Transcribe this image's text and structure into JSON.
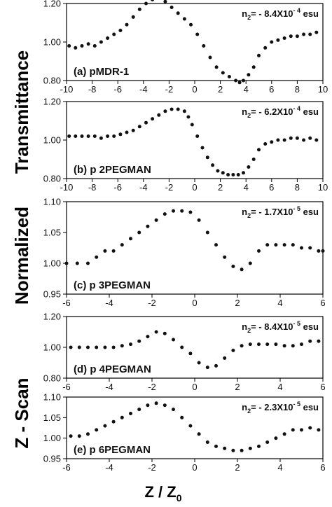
{
  "figure": {
    "ylabel_parts": [
      "Z - Scan",
      "Normalized",
      "Transmittance"
    ],
    "xlabel_main": "Z / Z",
    "xlabel_sub": "0"
  },
  "chart_data": [
    {
      "type": "scatter",
      "panel_label": "(a) pMDR-1",
      "annotation": {
        "prefix": "n",
        "sub": "2",
        "main": "= - 8.4X10",
        "sup": "- 4",
        "unit": " esu"
      },
      "xlim": [
        -10,
        10
      ],
      "ylim": [
        0.8,
        1.2
      ],
      "xticks": [
        "-10",
        "-8",
        "-6",
        "-4",
        "-2",
        "0",
        "2",
        "4",
        "6",
        "8",
        "10"
      ],
      "yticks": [
        "0.80",
        "1.00",
        "1.20"
      ],
      "x": [
        -9.8,
        -9.3,
        -8.8,
        -8.3,
        -7.8,
        -7.3,
        -6.8,
        -6.3,
        -5.8,
        -5.3,
        -4.8,
        -4.3,
        -3.8,
        -3.3,
        -2.8,
        -2.3,
        -1.8,
        -1.3,
        -0.8,
        -0.3,
        0.2,
        0.7,
        1.2,
        1.7,
        2.2,
        2.7,
        3.2,
        3.5,
        3.8,
        4.2,
        4.6,
        5.0,
        5.5,
        6.0,
        6.5,
        7.0,
        7.5,
        8.0,
        8.5,
        9.0,
        9.5
      ],
      "y": [
        0.98,
        0.97,
        0.98,
        0.99,
        0.98,
        1.0,
        1.02,
        1.04,
        1.06,
        1.09,
        1.13,
        1.17,
        1.2,
        1.22,
        1.23,
        1.21,
        1.18,
        1.15,
        1.12,
        1.09,
        1.04,
        0.98,
        0.92,
        0.87,
        0.84,
        0.82,
        0.8,
        0.79,
        0.8,
        0.83,
        0.87,
        0.93,
        0.97,
        1.0,
        1.01,
        1.02,
        1.03,
        1.03,
        1.04,
        1.04,
        1.05
      ]
    },
    {
      "type": "scatter",
      "panel_label": "(b) p 2PEGMAN",
      "annotation": {
        "prefix": "n",
        "sub": "2",
        "main": "= - 6.2X10",
        "sup": "- 4",
        "unit": " esu"
      },
      "xlim": [
        -10,
        10
      ],
      "ylim": [
        0.8,
        1.2
      ],
      "xticks": [
        "-10",
        "-8",
        "-6",
        "-4",
        "-2",
        "0",
        "2",
        "4",
        "6",
        "8",
        "10"
      ],
      "yticks": [
        "0.80",
        "1.00",
        "1.20"
      ],
      "x": [
        -9.8,
        -9.3,
        -8.8,
        -8.3,
        -7.8,
        -7.3,
        -6.8,
        -6.3,
        -5.8,
        -5.3,
        -4.8,
        -4.3,
        -3.8,
        -3.3,
        -2.8,
        -2.3,
        -1.8,
        -1.3,
        -0.8,
        -0.5,
        -0.2,
        0.2,
        0.6,
        1.0,
        1.4,
        1.8,
        2.2,
        2.6,
        3.0,
        3.4,
        3.8,
        4.2,
        4.6,
        5.0,
        5.5,
        6.0,
        6.5,
        7.0,
        7.5,
        8.0,
        8.5,
        9.0,
        9.5
      ],
      "y": [
        1.02,
        1.02,
        1.02,
        1.02,
        1.02,
        1.01,
        1.02,
        1.02,
        1.03,
        1.04,
        1.05,
        1.07,
        1.09,
        1.11,
        1.13,
        1.15,
        1.16,
        1.16,
        1.15,
        1.12,
        1.08,
        1.02,
        0.96,
        0.91,
        0.87,
        0.84,
        0.83,
        0.82,
        0.82,
        0.82,
        0.83,
        0.86,
        0.9,
        0.95,
        0.98,
        0.99,
        1.0,
        1.0,
        1.01,
        1.01,
        1.0,
        1.01,
        1.0
      ]
    },
    {
      "type": "scatter",
      "panel_label": "(c) p 3PEGMAN",
      "annotation": {
        "prefix": "n",
        "sub": "2",
        "main": "= - 1.7X10",
        "sup": "- 5",
        "unit": " esu"
      },
      "xlim": [
        -6,
        6
      ],
      "ylim": [
        0.95,
        1.1
      ],
      "xticks": [
        "-6",
        "-4",
        "-2",
        "0",
        "2",
        "4",
        "6"
      ],
      "yticks": [
        "0.95",
        "1.00",
        "1.05",
        "1.10"
      ],
      "x": [
        -6.0,
        -5.5,
        -5.0,
        -4.6,
        -4.2,
        -3.8,
        -3.4,
        -3.0,
        -2.6,
        -2.2,
        -1.8,
        -1.4,
        -1.0,
        -0.6,
        -0.2,
        0.2,
        0.6,
        1.0,
        1.4,
        1.8,
        2.2,
        2.6,
        3.0,
        3.4,
        3.8,
        4.2,
        4.6,
        5.0,
        5.4,
        5.8,
        6.0
      ],
      "y": [
        1.0,
        1.0,
        1.0,
        1.01,
        1.02,
        1.02,
        1.03,
        1.04,
        1.05,
        1.06,
        1.07,
        1.08,
        1.085,
        1.085,
        1.083,
        1.07,
        1.05,
        1.03,
        1.01,
        0.995,
        0.99,
        1.0,
        1.02,
        1.03,
        1.03,
        1.03,
        1.03,
        1.025,
        1.025,
        1.02,
        1.02
      ]
    },
    {
      "type": "scatter",
      "panel_label": "(d) p 4PEGMAN",
      "annotation": {
        "prefix": "n",
        "sub": "2",
        "main": "= - 8.4X10",
        "sup": "- 5",
        "unit": " esu"
      },
      "xlim": [
        -6,
        6
      ],
      "ylim": [
        0.8,
        1.2
      ],
      "xticks": [
        "-6",
        "-4",
        "-2",
        "0",
        "2",
        "4",
        "6"
      ],
      "yticks": [
        "0.80",
        "1.00",
        "1.20"
      ],
      "x": [
        -5.8,
        -5.4,
        -5.0,
        -4.6,
        -4.2,
        -3.8,
        -3.4,
        -3.0,
        -2.6,
        -2.2,
        -1.8,
        -1.4,
        -1.0,
        -0.6,
        -0.2,
        0.2,
        0.6,
        1.0,
        1.4,
        1.8,
        2.2,
        2.6,
        3.0,
        3.4,
        3.8,
        4.2,
        4.6,
        5.0,
        5.4,
        5.8
      ],
      "y": [
        1.0,
        1.0,
        1.0,
        1.0,
        1.0,
        1.0,
        1.01,
        1.02,
        1.04,
        1.07,
        1.1,
        1.09,
        1.05,
        1.0,
        0.96,
        0.9,
        0.87,
        0.88,
        0.93,
        0.98,
        1.01,
        1.02,
        1.02,
        1.02,
        1.02,
        1.01,
        1.01,
        1.02,
        1.04,
        1.04
      ]
    },
    {
      "type": "scatter",
      "panel_label": "(e) p 6PEGMAN",
      "annotation": {
        "prefix": "n",
        "sub": "2",
        "main": "= - 2.3X10",
        "sup": "- 5",
        "unit": " esu"
      },
      "xlim": [
        -6,
        6
      ],
      "ylim": [
        0.95,
        1.1
      ],
      "xticks": [
        "-6",
        "-4",
        "-2",
        "0",
        "2",
        "4",
        "6"
      ],
      "yticks": [
        "0.95",
        "1.00",
        "1.05",
        "1.10"
      ],
      "x": [
        -5.8,
        -5.4,
        -5.0,
        -4.6,
        -4.2,
        -3.8,
        -3.4,
        -3.0,
        -2.6,
        -2.2,
        -1.8,
        -1.4,
        -1.0,
        -0.6,
        -0.2,
        0.2,
        0.6,
        1.0,
        1.4,
        1.8,
        2.2,
        2.6,
        3.0,
        3.4,
        3.8,
        4.2,
        4.6,
        5.0,
        5.4,
        5.8
      ],
      "y": [
        1.005,
        1.005,
        1.01,
        1.02,
        1.03,
        1.04,
        1.05,
        1.06,
        1.07,
        1.08,
        1.085,
        1.08,
        1.07,
        1.05,
        1.03,
        1.01,
        0.99,
        0.98,
        0.975,
        0.97,
        0.97,
        0.975,
        0.98,
        0.99,
        1.0,
        1.01,
        1.02,
        1.02,
        1.025,
        1.02
      ]
    }
  ]
}
